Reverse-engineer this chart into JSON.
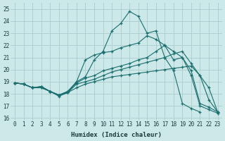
{
  "xlabel": "Humidex (Indice chaleur)",
  "bg_color": "#cce8e8",
  "grid_color": "#aacccc",
  "line_color": "#1a6e6e",
  "xlim": [
    -0.5,
    23.5
  ],
  "ylim": [
    15.8,
    25.5
  ],
  "yticks": [
    16,
    17,
    18,
    19,
    20,
    21,
    22,
    23,
    24,
    25
  ],
  "xticks": [
    0,
    1,
    2,
    3,
    4,
    5,
    6,
    7,
    8,
    9,
    10,
    11,
    12,
    13,
    14,
    15,
    16,
    17,
    18,
    19,
    20,
    21,
    22,
    23
  ],
  "lines": [
    {
      "x": [
        0,
        1,
        2,
        3,
        4,
        5,
        6,
        7,
        8,
        9,
        10,
        11,
        12,
        13,
        14,
        15,
        16,
        17,
        18,
        19,
        20,
        21,
        22,
        23
      ],
      "y": [
        18.9,
        18.8,
        18.5,
        18.6,
        18.2,
        17.8,
        18.1,
        19.0,
        19.4,
        20.8,
        21.5,
        23.2,
        23.8,
        24.8,
        24.4,
        23.0,
        23.2,
        21.0,
        19.9,
        17.2,
        16.8,
        16.5,
        null,
        null
      ]
    },
    {
      "x": [
        0,
        1,
        2,
        3,
        4,
        5,
        6,
        7,
        8,
        9,
        10,
        11,
        12,
        13,
        14,
        15,
        16,
        17,
        18,
        19,
        20,
        21,
        22,
        23
      ],
      "y": [
        18.9,
        18.8,
        18.5,
        18.6,
        18.2,
        17.9,
        18.2,
        19.0,
        20.8,
        21.2,
        21.4,
        21.5,
        21.8,
        22.0,
        22.2,
        22.8,
        22.5,
        22.0,
        20.8,
        21.0,
        19.9,
        17.2,
        16.9,
        16.5
      ]
    },
    {
      "x": [
        0,
        1,
        2,
        3,
        4,
        5,
        6,
        7,
        8,
        9,
        10,
        11,
        12,
        13,
        14,
        15,
        16,
        17,
        18,
        19,
        20,
        21,
        22,
        23
      ],
      "y": [
        18.9,
        18.8,
        18.5,
        18.6,
        18.2,
        17.9,
        18.2,
        18.9,
        19.3,
        19.5,
        19.9,
        20.1,
        20.3,
        20.5,
        20.8,
        21.0,
        21.5,
        22.0,
        21.5,
        21.0,
        19.5,
        17.0,
        16.7,
        16.4
      ]
    },
    {
      "x": [
        0,
        1,
        2,
        3,
        4,
        5,
        6,
        7,
        8,
        9,
        10,
        11,
        12,
        13,
        14,
        15,
        16,
        17,
        18,
        19,
        20,
        21,
        22,
        23
      ],
      "y": [
        18.9,
        18.8,
        18.5,
        18.5,
        18.2,
        17.9,
        18.1,
        18.8,
        19.0,
        19.2,
        19.5,
        19.8,
        20.0,
        20.2,
        20.4,
        20.6,
        20.8,
        21.0,
        21.3,
        21.5,
        20.5,
        19.5,
        17.5,
        16.5
      ]
    },
    {
      "x": [
        0,
        1,
        2,
        3,
        4,
        5,
        6,
        7,
        8,
        9,
        10,
        11,
        12,
        13,
        14,
        15,
        16,
        17,
        18,
        19,
        20,
        21,
        22,
        23
      ],
      "y": [
        18.9,
        18.8,
        18.5,
        18.5,
        18.2,
        17.9,
        18.1,
        18.5,
        18.8,
        19.0,
        19.2,
        19.4,
        19.5,
        19.6,
        19.7,
        19.8,
        19.9,
        20.0,
        20.1,
        20.2,
        20.3,
        19.5,
        18.5,
        16.5
      ]
    }
  ]
}
